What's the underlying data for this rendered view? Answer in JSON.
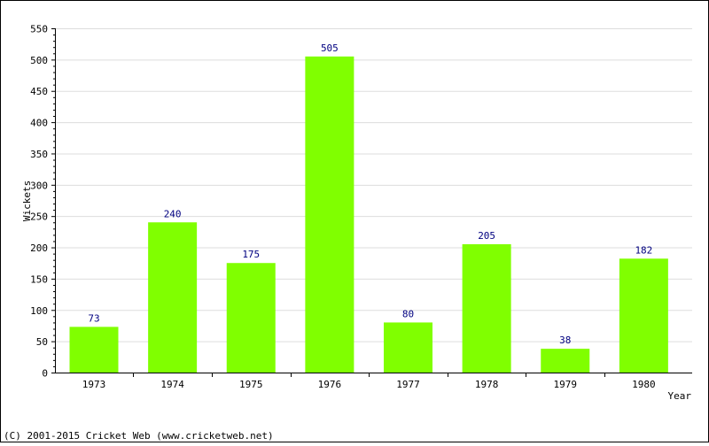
{
  "chart_data": {
    "type": "bar",
    "categories": [
      "1973",
      "1974",
      "1975",
      "1976",
      "1977",
      "1978",
      "1979",
      "1980"
    ],
    "values": [
      73,
      240,
      175,
      505,
      80,
      205,
      38,
      182
    ],
    "title": "",
    "xlabel": "Year",
    "ylabel": "Wickets",
    "ylim": [
      0,
      550
    ],
    "yticks": [
      0,
      50,
      100,
      150,
      200,
      250,
      300,
      350,
      400,
      450,
      500,
      550
    ],
    "bar_color": "#80ff00",
    "data_label_color": "#000080",
    "grid": true,
    "legend": "none"
  },
  "footer": {
    "copyright": "(C) 2001-2015 Cricket Web (www.cricketweb.net)"
  }
}
